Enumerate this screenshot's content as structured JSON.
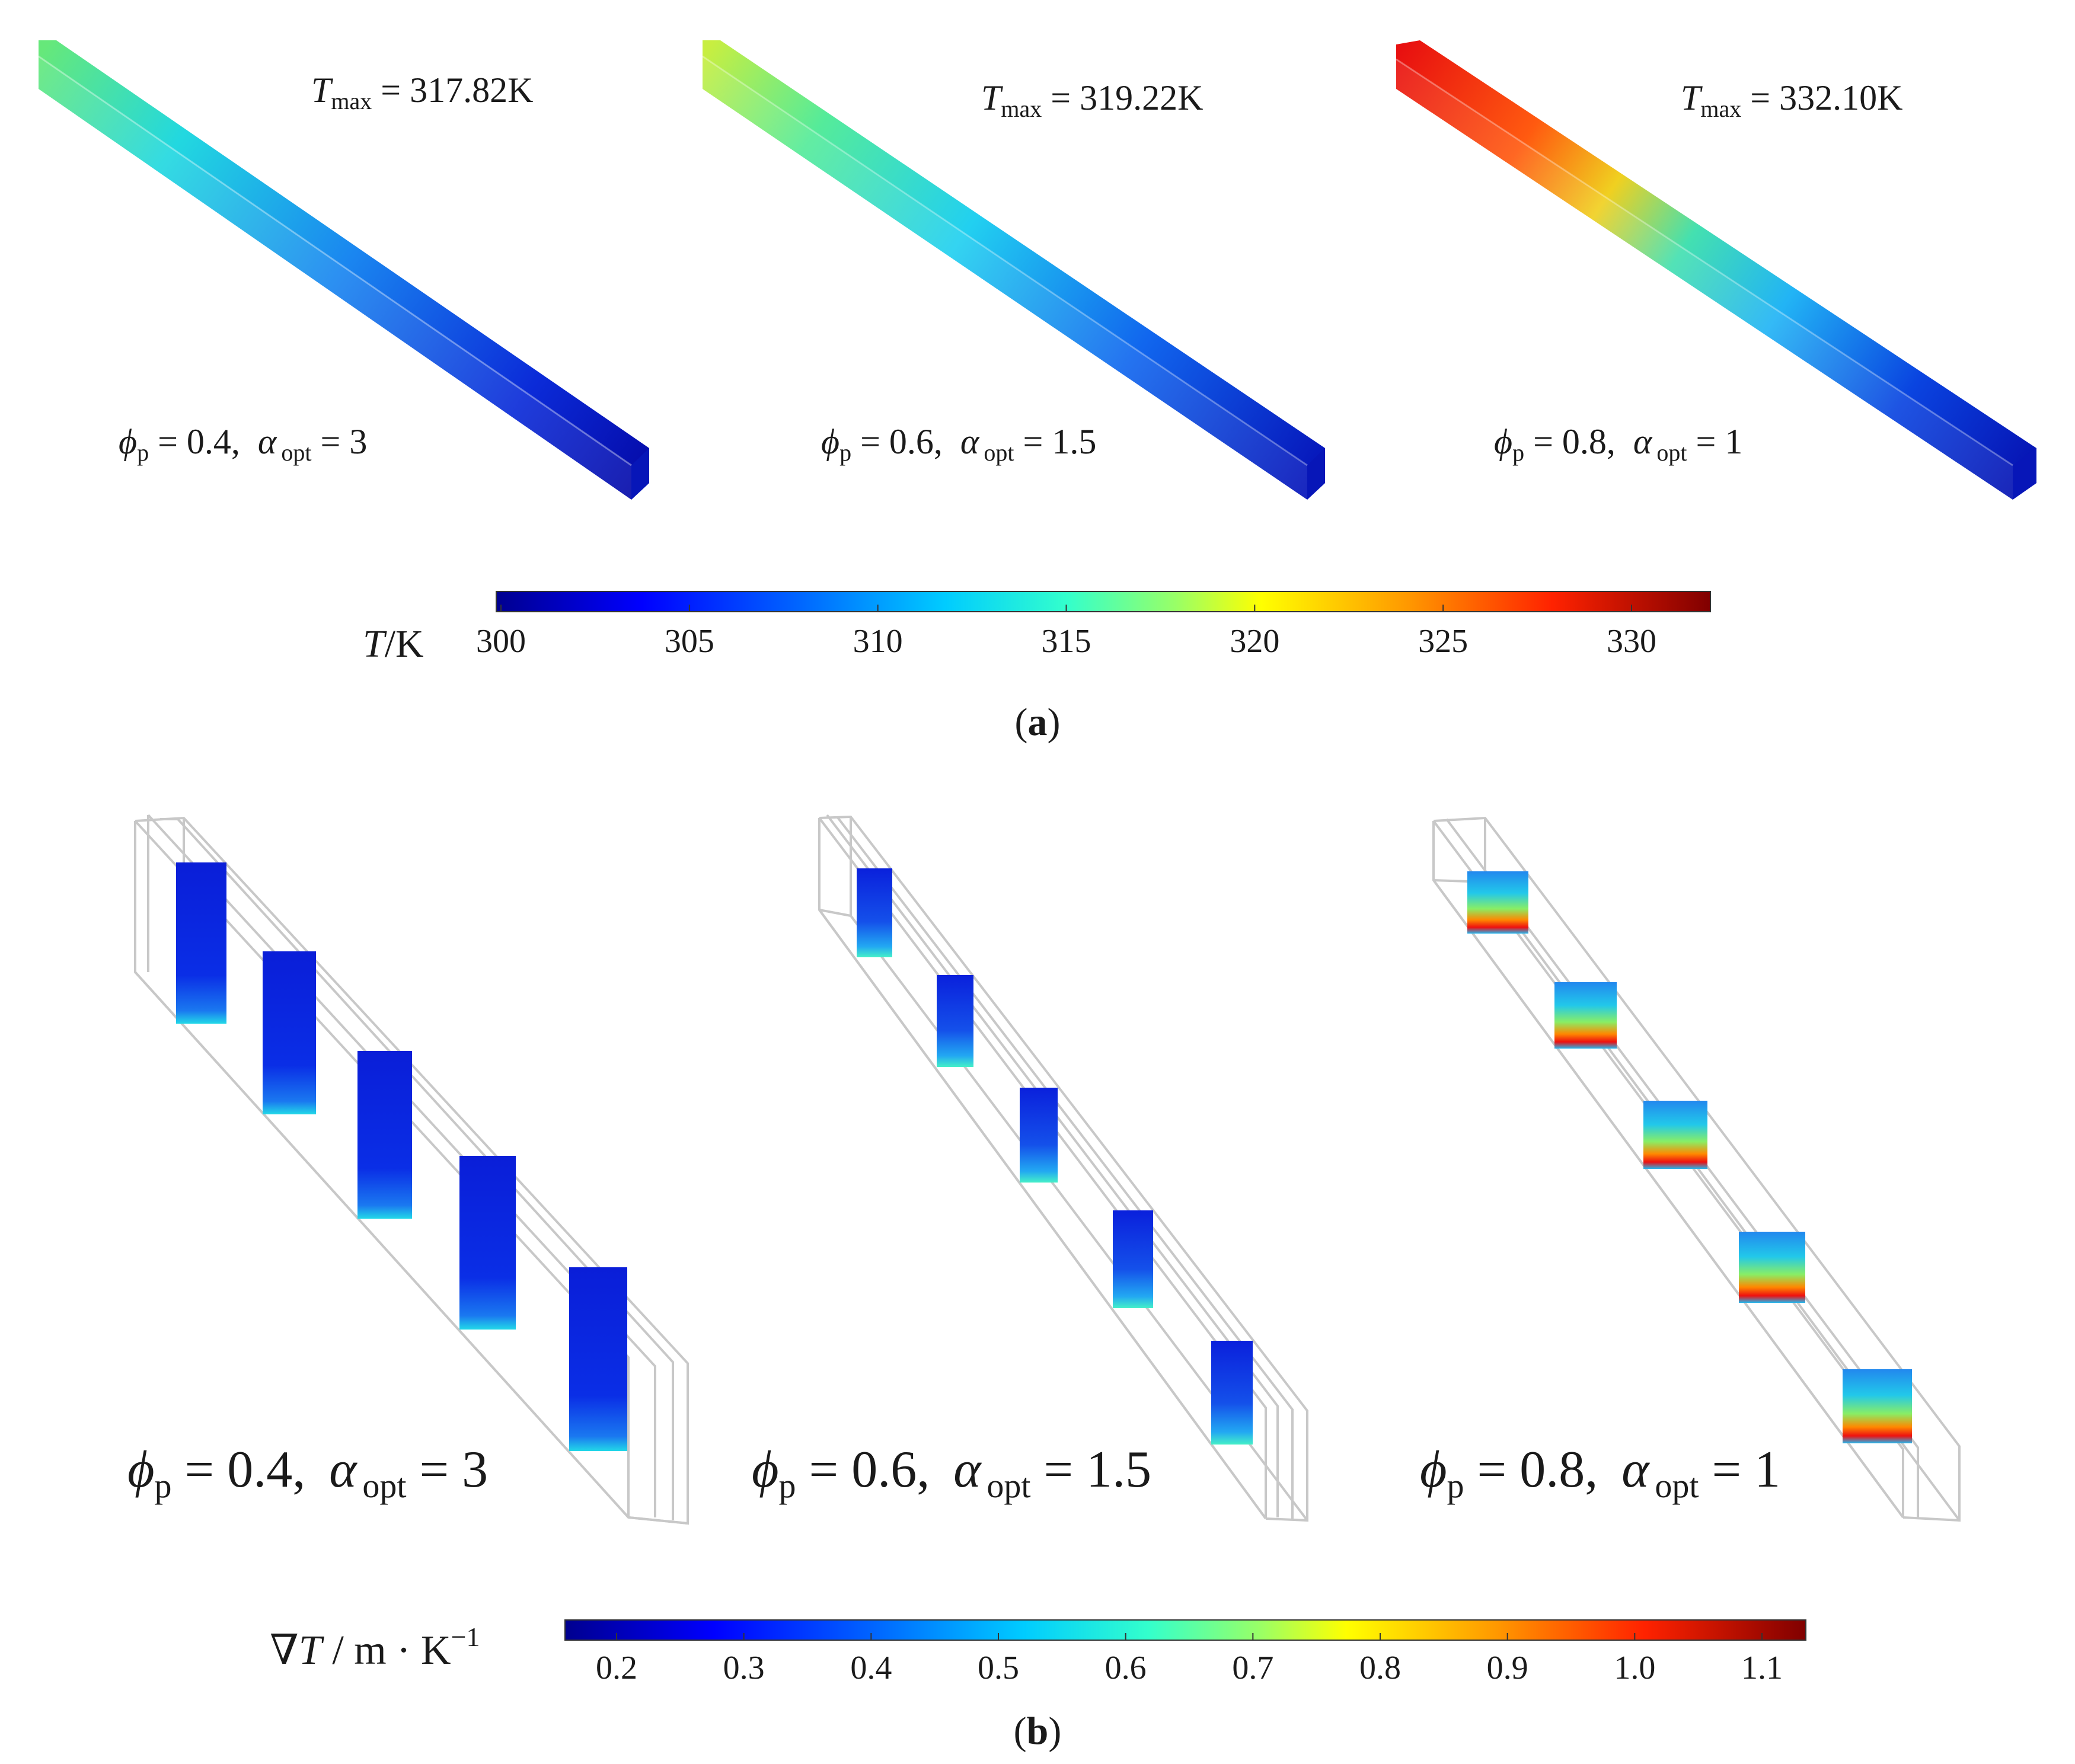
{
  "panel_a": {
    "label": "a",
    "colorbar": {
      "symbol": "T",
      "unit": "/K",
      "ticks": [
        "300",
        "305",
        "310",
        "315",
        "320",
        "325",
        "330"
      ]
    },
    "cases": [
      {
        "tmax_value": "317.82K",
        "phi_value": "0.4",
        "alpha_value": "3"
      },
      {
        "tmax_value": "319.22K",
        "phi_value": "0.6",
        "alpha_value": "1.5"
      },
      {
        "tmax_value": "332.10K",
        "phi_value": "0.8",
        "alpha_value": "1"
      }
    ]
  },
  "panel_b": {
    "label": "b",
    "colorbar": {
      "symbol": "T",
      "unit_prefix": " / m · K",
      "exponent": "−1",
      "ticks": [
        "0.2",
        "0.3",
        "0.4",
        "0.5",
        "0.6",
        "0.7",
        "0.8",
        "0.9",
        "1.0",
        "1.1"
      ]
    },
    "cases": [
      {
        "phi_value": "0.4",
        "alpha_value": "3"
      },
      {
        "phi_value": "0.6",
        "alpha_value": "1.5"
      },
      {
        "phi_value": "0.8",
        "alpha_value": "1"
      }
    ]
  },
  "common": {
    "tmax_symbol": "T",
    "tmax_sub": "max",
    "phi_symbol": "ϕ",
    "phi_sub": "p",
    "alpha_symbol": "α",
    "alpha_sub": "opt",
    "equals": " = ",
    "comma": ","
  },
  "colors": {
    "jet": [
      "#00008f",
      "#0000ff",
      "#0080ff",
      "#00ffff",
      "#80ff80",
      "#ffff00",
      "#ff8000",
      "#ff0000",
      "#800000"
    ],
    "frame": "#c8c8c8"
  }
}
